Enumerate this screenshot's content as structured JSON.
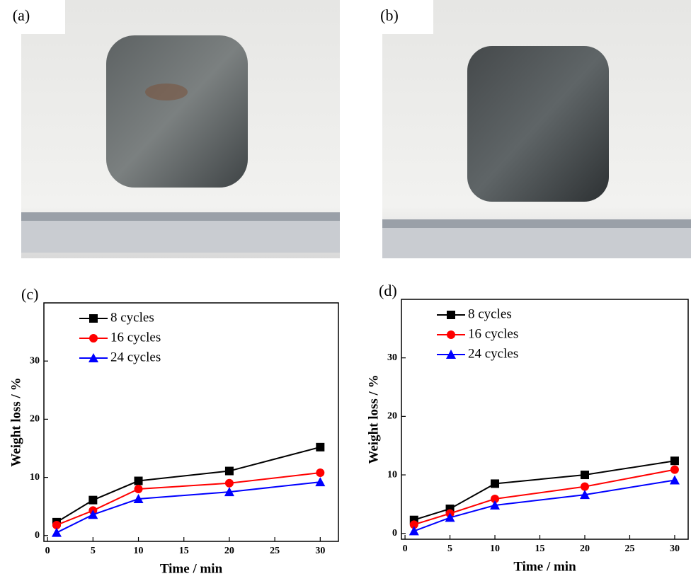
{
  "panels": [
    "(a)",
    "(b)"
  ],
  "chart_data": [
    {
      "type": "line",
      "panel_label": "(c)",
      "xlabel": "Time / min",
      "ylabel": "Weight loss / %",
      "x": [
        1,
        5,
        10,
        20,
        30
      ],
      "series": [
        {
          "name": "8 cycles",
          "color": "#000000",
          "marker": "square",
          "values": [
            2.3,
            6.1,
            9.4,
            11.1,
            15.2
          ]
        },
        {
          "name": "16 cycles",
          "color": "#ff0000",
          "marker": "circle",
          "values": [
            1.8,
            4.3,
            8.0,
            9.0,
            10.8
          ]
        },
        {
          "name": "24 cycles",
          "color": "#0000ff",
          "marker": "triangle",
          "values": [
            0.5,
            3.6,
            6.3,
            7.5,
            9.2
          ]
        }
      ],
      "xlim": [
        -0.4,
        32
      ],
      "xticks": [
        0,
        5,
        10,
        15,
        20,
        25,
        30
      ],
      "ylim": [
        -1,
        40
      ],
      "yticks": [
        0,
        10,
        20,
        30
      ],
      "grid": false,
      "legend": "upper left"
    },
    {
      "type": "line",
      "panel_label": "(d)",
      "xlabel": "Time / min",
      "ylabel": "Weight loss / %",
      "x": [
        1,
        5,
        10,
        20,
        30
      ],
      "series": [
        {
          "name": "8 cycles",
          "color": "#000000",
          "marker": "square",
          "values": [
            2.3,
            4.2,
            8.5,
            10.0,
            12.4
          ]
        },
        {
          "name": "16 cycles",
          "color": "#ff0000",
          "marker": "circle",
          "values": [
            1.5,
            3.4,
            5.9,
            8.0,
            10.9
          ]
        },
        {
          "name": "24 cycles",
          "color": "#0000ff",
          "marker": "triangle",
          "values": [
            0.4,
            2.7,
            4.8,
            6.6,
            9.1
          ]
        }
      ],
      "xlim": [
        -0.4,
        31.5
      ],
      "xticks": [
        0,
        5,
        10,
        15,
        20,
        25,
        30
      ],
      "ylim": [
        -1,
        40
      ],
      "yticks": [
        0,
        10,
        20,
        30
      ],
      "grid": false,
      "legend": "upper left"
    }
  ]
}
